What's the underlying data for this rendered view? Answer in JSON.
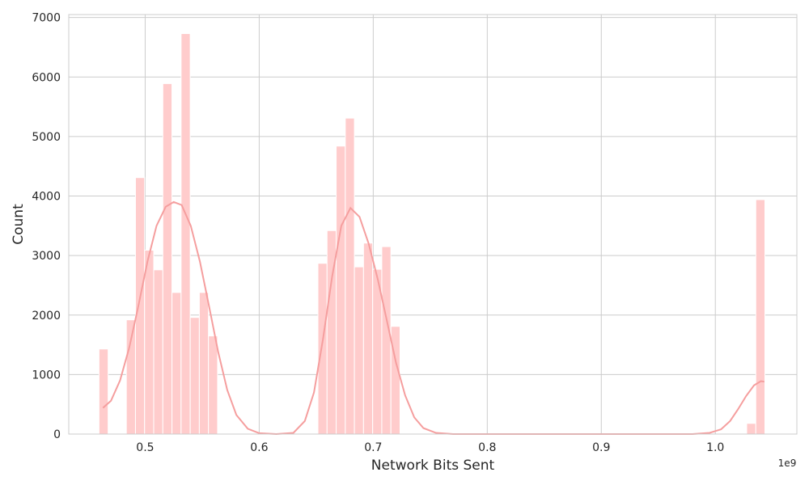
{
  "chart_data": {
    "type": "bar",
    "xlabel": "Network Bits Sent",
    "ylabel": "Count",
    "x_offset_label": "1e9",
    "xlim": [
      0.433,
      1.0715
    ],
    "ylim": [
      0,
      7050
    ],
    "x_ticks": [
      0.5,
      0.6,
      0.7,
      0.8,
      0.9,
      1.0
    ],
    "x_tick_labels": [
      "0.5",
      "0.6",
      "0.7",
      "0.8",
      "0.9",
      "1.0"
    ],
    "y_ticks": [
      0,
      1000,
      2000,
      3000,
      4000,
      5000,
      6000,
      7000
    ],
    "y_tick_labels": [
      "0",
      "1000",
      "2000",
      "3000",
      "4000",
      "5000",
      "6000",
      "7000"
    ],
    "grid": true,
    "colors": {
      "bar": "#ffcccc",
      "kde": "#f59e9e",
      "grid": "#cccccc",
      "spine": "#cccccc"
    },
    "bin_width": 0.008,
    "histogram": [
      {
        "x": 0.4635,
        "count": 1430
      },
      {
        "x": 0.4875,
        "count": 1920
      },
      {
        "x": 0.4955,
        "count": 4310
      },
      {
        "x": 0.5035,
        "count": 3090
      },
      {
        "x": 0.5115,
        "count": 2760
      },
      {
        "x": 0.5195,
        "count": 5890
      },
      {
        "x": 0.5275,
        "count": 2380
      },
      {
        "x": 0.5355,
        "count": 6730
      },
      {
        "x": 0.5435,
        "count": 1960
      },
      {
        "x": 0.5515,
        "count": 2380
      },
      {
        "x": 0.5595,
        "count": 1650
      },
      {
        "x": 0.6555,
        "count": 2870
      },
      {
        "x": 0.6635,
        "count": 3420
      },
      {
        "x": 0.6715,
        "count": 4840
      },
      {
        "x": 0.6795,
        "count": 5310
      },
      {
        "x": 0.6875,
        "count": 2810
      },
      {
        "x": 0.6955,
        "count": 3210
      },
      {
        "x": 0.7035,
        "count": 2770
      },
      {
        "x": 0.7115,
        "count": 3150
      },
      {
        "x": 0.7195,
        "count": 1810
      },
      {
        "x": 1.0315,
        "count": 180
      },
      {
        "x": 1.0395,
        "count": 3940
      }
    ],
    "kde": [
      [
        0.463,
        440
      ],
      [
        0.47,
        560
      ],
      [
        0.478,
        900
      ],
      [
        0.486,
        1450
      ],
      [
        0.494,
        2150
      ],
      [
        0.502,
        2900
      ],
      [
        0.51,
        3500
      ],
      [
        0.518,
        3820
      ],
      [
        0.525,
        3900
      ],
      [
        0.532,
        3850
      ],
      [
        0.54,
        3500
      ],
      [
        0.548,
        2900
      ],
      [
        0.556,
        2150
      ],
      [
        0.564,
        1380
      ],
      [
        0.572,
        740
      ],
      [
        0.58,
        320
      ],
      [
        0.59,
        90
      ],
      [
        0.6,
        15
      ],
      [
        0.615,
        0
      ],
      [
        0.63,
        20
      ],
      [
        0.64,
        220
      ],
      [
        0.648,
        700
      ],
      [
        0.656,
        1600
      ],
      [
        0.664,
        2650
      ],
      [
        0.672,
        3500
      ],
      [
        0.68,
        3800
      ],
      [
        0.688,
        3650
      ],
      [
        0.696,
        3200
      ],
      [
        0.704,
        2600
      ],
      [
        0.712,
        1900
      ],
      [
        0.72,
        1200
      ],
      [
        0.728,
        650
      ],
      [
        0.736,
        280
      ],
      [
        0.744,
        100
      ],
      [
        0.755,
        20
      ],
      [
        0.77,
        0
      ],
      [
        0.8,
        0
      ],
      [
        0.85,
        0
      ],
      [
        0.9,
        0
      ],
      [
        0.95,
        0
      ],
      [
        0.98,
        0
      ],
      [
        0.995,
        20
      ],
      [
        1.005,
        80
      ],
      [
        1.013,
        220
      ],
      [
        1.02,
        420
      ],
      [
        1.027,
        640
      ],
      [
        1.034,
        820
      ],
      [
        1.04,
        890
      ],
      [
        1.043,
        880
      ]
    ]
  }
}
